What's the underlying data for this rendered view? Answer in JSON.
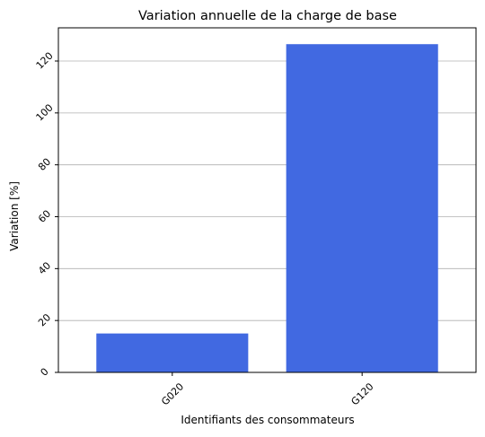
{
  "chart_data": {
    "type": "bar",
    "title": "Variation annuelle de la charge de base",
    "xlabel": "Identifiants des consommateurs",
    "ylabel": "Variation [%]",
    "categories": [
      "G020",
      "G120"
    ],
    "values": [
      15,
      126.5
    ],
    "ylim": [
      0,
      132.8
    ],
    "yticks": [
      0,
      20,
      40,
      60,
      80,
      100,
      120
    ],
    "tick_rotation_deg": 45,
    "grid": "y-major",
    "legend": "none",
    "bar_color": "#4169e1",
    "grid_color": "#b0b0b0"
  }
}
